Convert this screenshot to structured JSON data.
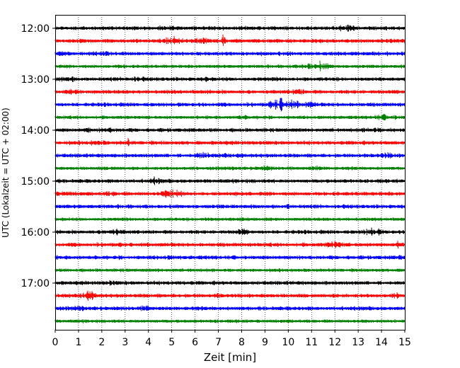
{
  "chart_data": {
    "type": "line",
    "title": "",
    "xlabel": "Zeit  [min]",
    "ylabel": "UTC (Lokalzeit = UTC + 02:00)",
    "xlim": [
      0,
      15
    ],
    "x_ticks": [
      "0",
      "1",
      "2",
      "3",
      "4",
      "5",
      "6",
      "7",
      "8",
      "9",
      "10",
      "11",
      "12",
      "13",
      "14",
      "15"
    ],
    "y_ticks": [
      "12:00",
      "13:00",
      "14:00",
      "15:00",
      "16:00",
      "17:00"
    ],
    "x_grid": true,
    "trace_colors": [
      "#000000",
      "#ff0000",
      "#0000ff",
      "#008000"
    ],
    "traces_start": "12:00",
    "traces_interval_min": 15,
    "trace_count": 24
  }
}
